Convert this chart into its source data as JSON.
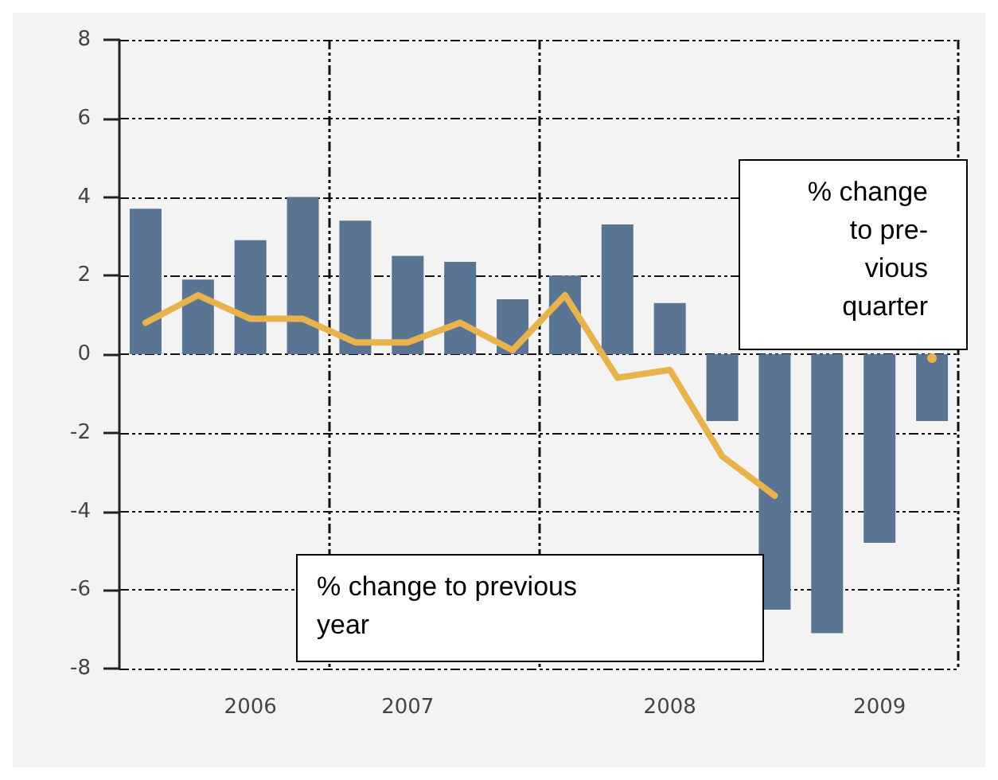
{
  "chart_data": {
    "type": "bar",
    "categories": [
      null,
      null,
      "2006",
      null,
      null,
      "2007",
      null,
      null,
      null,
      null,
      "2008",
      null,
      null,
      null,
      "2009",
      null
    ],
    "ylim": [
      -8,
      8
    ],
    "yticks": [
      -8,
      -6,
      -4,
      -2,
      0,
      2,
      4,
      6,
      8
    ],
    "series": [
      {
        "color": "#5a7593",
        "values": [
          3.7,
          1.9,
          2.9,
          4.0,
          3.4,
          2.5,
          2.35,
          1.4,
          2.0,
          3.3,
          1.3,
          -1.7,
          -6.5,
          -7.1,
          -4.8,
          -1.7
        ]
      },
      {
        "type": "line",
        "color": "#e8b34c",
        "values": [
          0.8,
          1.5,
          0.9,
          0.9,
          0.3,
          0.3,
          0.8,
          0.1,
          1.5,
          -0.6,
          -0.4,
          -2.6,
          -3.6,
          null,
          null,
          -0.1
        ]
      }
    ],
    "annotations": [
      "% change\nto pre-\nvious\nquarter",
      "% change to previous\nyear"
    ],
    "grid": true,
    "marker": "none",
    "line_style": "solid"
  }
}
